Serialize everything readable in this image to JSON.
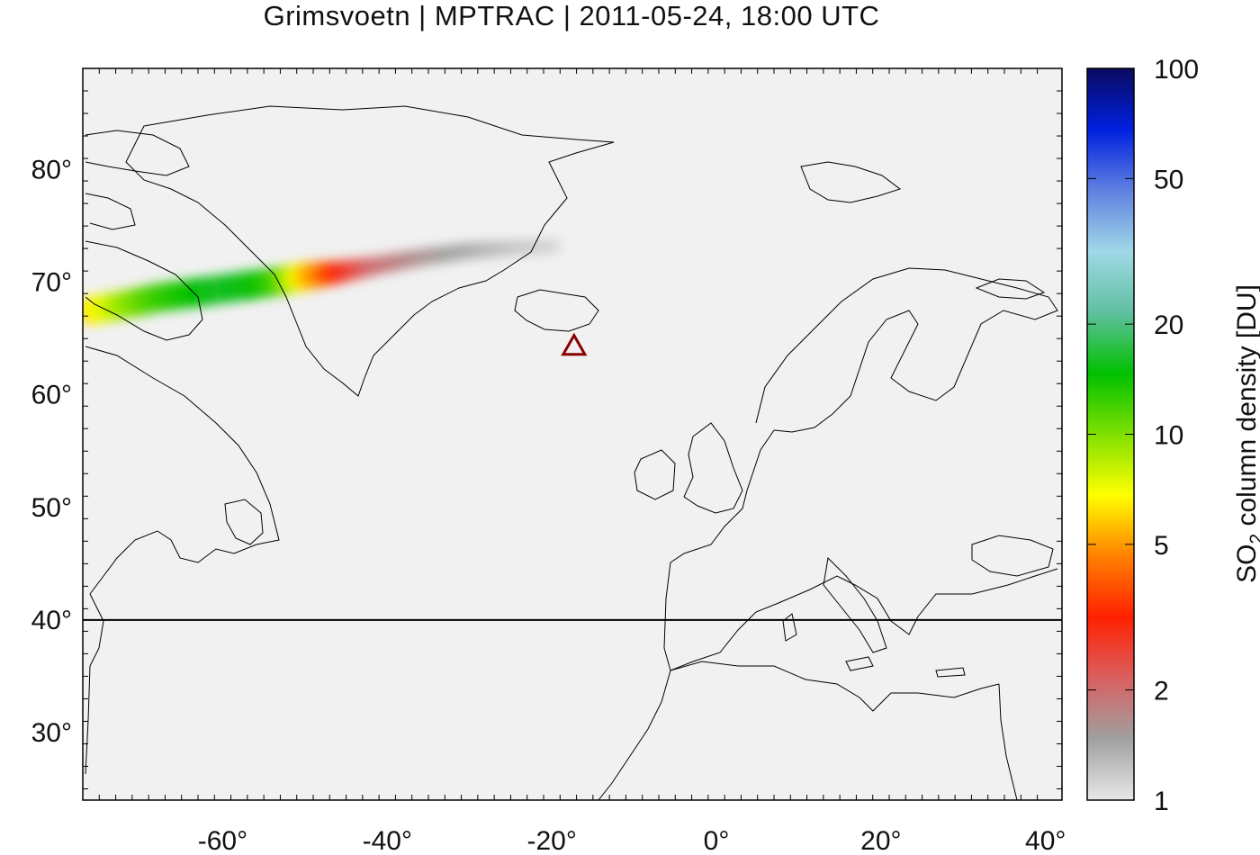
{
  "title": "Grimsvoetn | MPTRAC | 2011-05-24, 18:00 UTC",
  "map": {
    "lon_range": [
      -77,
      42
    ],
    "lat_range": [
      24,
      89
    ],
    "background": "#f1f1f1",
    "x_ticks": [
      {
        "value": -60,
        "label": "-60°"
      },
      {
        "value": -40,
        "label": "-40°"
      },
      {
        "value": -20,
        "label": "-20°"
      },
      {
        "value": 0,
        "label": "0°"
      },
      {
        "value": 20,
        "label": "20°"
      },
      {
        "value": 40,
        "label": "40°"
      }
    ],
    "y_ticks": [
      {
        "value": 30,
        "label": "30°"
      },
      {
        "value": 40,
        "label": "40°"
      },
      {
        "value": 50,
        "label": "50°"
      },
      {
        "value": 60,
        "label": "60°"
      },
      {
        "value": 70,
        "label": "70°"
      },
      {
        "value": 80,
        "label": "80°"
      }
    ],
    "reference_line_lat": 40,
    "volcano": {
      "name": "Grimsvoetn",
      "lon": -17.3,
      "lat": 64.4,
      "marker": "triangle-outline",
      "color": "#8b0000"
    }
  },
  "colorbar": {
    "label_main": "SO",
    "label_sub": "2",
    "label_rest": " column density [DU]",
    "scale": "log",
    "range": [
      1,
      100
    ],
    "ticks": [
      {
        "value": 1,
        "label": "1"
      },
      {
        "value": 2,
        "label": "2"
      },
      {
        "value": 5,
        "label": "5"
      },
      {
        "value": 10,
        "label": "10"
      },
      {
        "value": 20,
        "label": "20"
      },
      {
        "value": 50,
        "label": "50"
      },
      {
        "value": 100,
        "label": "100"
      }
    ],
    "colors": [
      "#e8e8e8",
      "#a0a0a0",
      "#d96060",
      "#ff2000",
      "#ff8000",
      "#ffff00",
      "#80e000",
      "#00c000",
      "#60c0a0",
      "#a0d8e8",
      "#6080e0",
      "#0020e0",
      "#0a0a60"
    ]
  },
  "plume": [
    {
      "lon": -76,
      "lat": 67.5,
      "du": 6
    },
    {
      "lon": -72,
      "lat": 68.0,
      "du": 9
    },
    {
      "lon": -68,
      "lat": 68.6,
      "du": 12
    },
    {
      "lon": -64,
      "lat": 69.0,
      "du": 14
    },
    {
      "lon": -60,
      "lat": 69.4,
      "du": 16
    },
    {
      "lon": -56,
      "lat": 69.8,
      "du": 15
    },
    {
      "lon": -53,
      "lat": 70.1,
      "du": 12
    },
    {
      "lon": -50,
      "lat": 70.5,
      "du": 6
    },
    {
      "lon": -46,
      "lat": 70.9,
      "du": 3
    },
    {
      "lon": -42,
      "lat": 71.4,
      "du": 2
    },
    {
      "lon": -36,
      "lat": 72.2,
      "du": 1.6
    },
    {
      "lon": -30,
      "lat": 72.8,
      "du": 1.4
    },
    {
      "lon": -24,
      "lat": 73.1,
      "du": 1.2
    },
    {
      "lon": -19,
      "lat": 73.2,
      "du": 1.1
    }
  ]
}
